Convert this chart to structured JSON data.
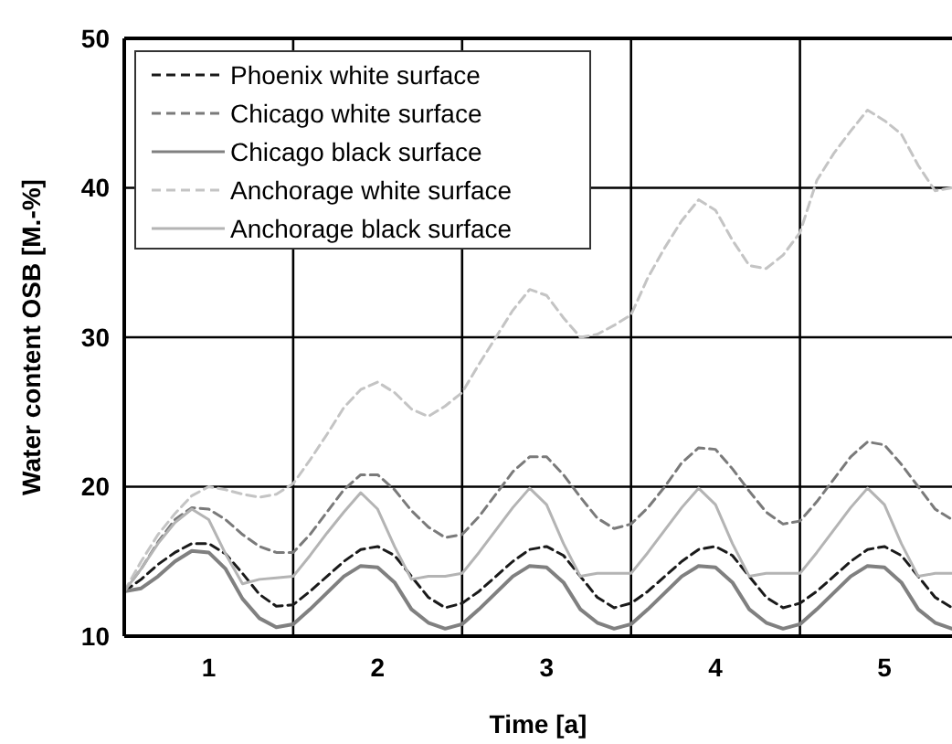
{
  "chart_data": {
    "type": "line",
    "xlabel": "Time [a]",
    "ylabel": "Water content OSB [M.-%]",
    "x": [
      0,
      0.1,
      0.2,
      0.3,
      0.4,
      0.5,
      0.6,
      0.7,
      0.8,
      0.9,
      1,
      1.1,
      1.2,
      1.3,
      1.4,
      1.5,
      1.6,
      1.7,
      1.8,
      1.9,
      2,
      2.1,
      2.2,
      2.3,
      2.4,
      2.5,
      2.6,
      2.7,
      2.8,
      2.9,
      3,
      3.1,
      3.2,
      3.3,
      3.4,
      3.5,
      3.6,
      3.7,
      3.8,
      3.9,
      4,
      4.1,
      4.2,
      4.3,
      4.4,
      4.5,
      4.6,
      4.7,
      4.8,
      4.9
    ],
    "xlim": [
      0,
      4.9
    ],
    "xticks": [
      {
        "value": 0.5,
        "label": "1"
      },
      {
        "value": 1,
        "label": null
      },
      {
        "value": 1.5,
        "label": "2"
      },
      {
        "value": 2,
        "label": null
      },
      {
        "value": 2.5,
        "label": "3"
      },
      {
        "value": 3,
        "label": null
      },
      {
        "value": 3.5,
        "label": "4"
      },
      {
        "value": 4,
        "label": null
      },
      {
        "value": 4.5,
        "label": "5"
      }
    ],
    "ylim": [
      10,
      50
    ],
    "yticks": [
      10,
      20,
      30,
      40,
      50
    ],
    "grid": true,
    "legend": "top left",
    "series": [
      {
        "name": "Phoenix white surface",
        "color": "#1a1a1a",
        "line_style": "dashed",
        "values": [
          13,
          13.8,
          14.8,
          15.6,
          16.2,
          16.2,
          15.5,
          14.2,
          12.8,
          12.0,
          12.1,
          13.0,
          14.0,
          15.0,
          15.8,
          16.0,
          15.4,
          14.0,
          12.6,
          11.9,
          12.2,
          13.0,
          14.0,
          15.0,
          15.8,
          16.0,
          15.4,
          14.0,
          12.6,
          11.9,
          12.2,
          13.0,
          14.0,
          15.0,
          15.8,
          16.0,
          15.4,
          14.0,
          12.6,
          11.9,
          12.2,
          13.0,
          14.0,
          15.0,
          15.8,
          16.0,
          15.4,
          14.0,
          12.6,
          11.9
        ]
      },
      {
        "name": "Chicago white surface",
        "color": "#7a7a7a",
        "line_style": "dashed",
        "values": [
          13,
          14.5,
          16.3,
          17.8,
          18.6,
          18.5,
          17.8,
          16.8,
          16.0,
          15.6,
          15.6,
          16.8,
          18.3,
          19.8,
          20.8,
          20.8,
          19.8,
          18.4,
          17.3,
          16.6,
          16.8,
          18.0,
          19.5,
          21.0,
          22.0,
          22.0,
          20.8,
          19.3,
          17.9,
          17.2,
          17.5,
          18.6,
          20.0,
          21.6,
          22.6,
          22.5,
          21.2,
          19.7,
          18.3,
          17.5,
          17.7,
          19.0,
          20.5,
          22.0,
          23.0,
          22.8,
          21.5,
          20.0,
          18.5,
          17.8
        ]
      },
      {
        "name": "Chicago black surface",
        "color": "#808080",
        "line_style": "solid",
        "values": [
          13,
          13.2,
          14.0,
          15.0,
          15.7,
          15.6,
          14.5,
          12.5,
          11.2,
          10.6,
          10.8,
          11.8,
          12.9,
          14.0,
          14.7,
          14.6,
          13.6,
          11.8,
          10.9,
          10.5,
          10.8,
          11.8,
          12.9,
          14.0,
          14.7,
          14.6,
          13.6,
          11.8,
          10.9,
          10.5,
          10.8,
          11.8,
          12.9,
          14.0,
          14.7,
          14.6,
          13.6,
          11.8,
          10.9,
          10.5,
          10.8,
          11.8,
          12.9,
          14.0,
          14.7,
          14.6,
          13.6,
          11.8,
          10.9,
          10.5
        ]
      },
      {
        "name": "Anchorage white surface",
        "color": "#c4c4c4",
        "line_style": "dashed",
        "values": [
          13,
          15.0,
          16.8,
          18.2,
          19.4,
          20.0,
          19.8,
          19.5,
          19.3,
          19.5,
          20.2,
          21.8,
          23.5,
          25.3,
          26.5,
          27.0,
          26.3,
          25.2,
          24.7,
          25.4,
          26.3,
          28.2,
          30.0,
          31.8,
          33.2,
          32.8,
          31.3,
          30.0,
          30.2,
          30.8,
          31.5,
          34.0,
          36.0,
          37.8,
          39.2,
          38.5,
          36.5,
          34.8,
          34.6,
          35.5,
          37.0,
          40.5,
          42.3,
          43.8,
          45.2,
          44.5,
          43.6,
          41.5,
          39.8,
          40.0
        ]
      },
      {
        "name": "Anchorage black surface",
        "color": "#b4b4b4",
        "line_style": "solid",
        "values": [
          13,
          14.5,
          16.2,
          17.6,
          18.5,
          17.8,
          15.5,
          13.5,
          13.8,
          13.9,
          14.0,
          15.4,
          16.9,
          18.3,
          19.6,
          18.5,
          16.0,
          13.8,
          14.0,
          14.0,
          14.2,
          15.6,
          17.1,
          18.6,
          19.9,
          18.8,
          16.2,
          14.0,
          14.2,
          14.2,
          14.2,
          15.6,
          17.1,
          18.6,
          19.9,
          18.8,
          16.2,
          14.0,
          14.2,
          14.2,
          14.2,
          15.6,
          17.1,
          18.6,
          19.9,
          18.8,
          16.2,
          14.0,
          14.2,
          14.2
        ]
      }
    ]
  }
}
